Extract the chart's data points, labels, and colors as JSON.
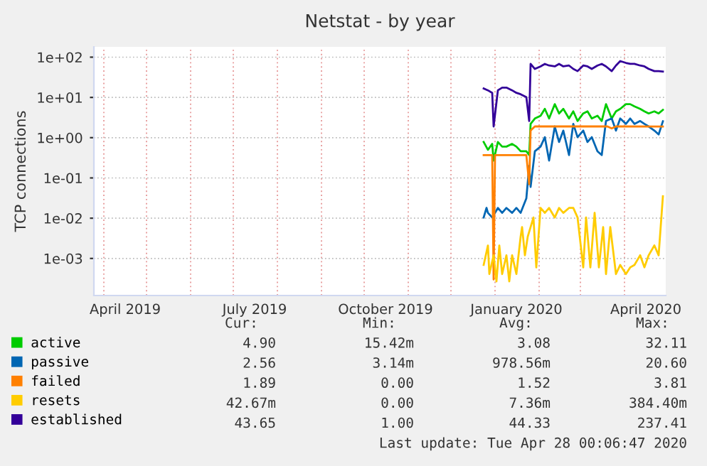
{
  "chart_data": {
    "type": "line",
    "title": "Netstat - by year",
    "ylabel": "TCP connections",
    "log": "y",
    "grid": true,
    "legend": "bottom left",
    "marker": "none",
    "line_style": "solid",
    "xlim": [
      "2019-03-25",
      "2020-04-30"
    ],
    "ylim": [
      0.00012,
      180
    ],
    "xticks": [
      {
        "value": "2019-04-01",
        "label": null
      },
      {
        "value": "2019-05-01",
        "label": null
      },
      {
        "value": "2019-06-01",
        "label": null
      },
      {
        "value": "2019-07-01",
        "label": null
      },
      {
        "value": "2019-08-01",
        "label": null
      },
      {
        "value": "2019-09-01",
        "label": null
      },
      {
        "value": "2019-10-01",
        "label": null
      },
      {
        "value": "2019-11-01",
        "label": null
      },
      {
        "value": "2019-12-01",
        "label": null
      },
      {
        "value": "2020-01-01",
        "label": null
      },
      {
        "value": "2020-02-01",
        "label": null
      },
      {
        "value": "2020-03-01",
        "label": null
      },
      {
        "value": "2020-04-01",
        "label": null
      },
      {
        "value": "2019-04-16",
        "label": "April 2019"
      },
      {
        "value": "2019-07-16",
        "label": "July 2019"
      },
      {
        "value": "2019-10-16",
        "label": "October 2019"
      },
      {
        "value": "2020-01-16",
        "label": "January 2020"
      },
      {
        "value": "2020-04-16",
        "label": "April 2020"
      }
    ],
    "yticks": [
      {
        "value": 0.001,
        "label": "1e-03"
      },
      {
        "value": 0.01,
        "label": "1e-02"
      },
      {
        "value": 0.1,
        "label": "1e-01"
      },
      {
        "value": 1,
        "label": "1e+00"
      },
      {
        "value": 10,
        "label": "1e+01"
      },
      {
        "value": 100,
        "label": "1e+02"
      }
    ],
    "series": [
      {
        "name": "active",
        "color": "#00cc00",
        "x": [
          "2019-12-24",
          "2019-12-27",
          "2019-12-30",
          "2019-12-31",
          "2020-01-03",
          "2020-01-06",
          "2020-01-09",
          "2020-01-13",
          "2020-01-16",
          "2020-01-19",
          "2020-01-23",
          "2020-01-25",
          "2020-01-26",
          "2020-01-29",
          "2020-02-02",
          "2020-02-05",
          "2020-02-08",
          "2020-02-12",
          "2020-02-15",
          "2020-02-18",
          "2020-02-22",
          "2020-02-25",
          "2020-02-28",
          "2020-03-03",
          "2020-03-06",
          "2020-03-09",
          "2020-03-13",
          "2020-03-16",
          "2020-03-19",
          "2020-03-23",
          "2020-03-26",
          "2020-03-29",
          "2020-04-02",
          "2020-04-05",
          "2020-04-08",
          "2020-04-12",
          "2020-04-15",
          "2020-04-18",
          "2020-04-22",
          "2020-04-25",
          "2020-04-28"
        ],
        "values": [
          0.78,
          0.5,
          0.7,
          0.27,
          0.78,
          0.6,
          0.6,
          0.7,
          0.6,
          0.46,
          0.46,
          0.37,
          2.2,
          3.0,
          3.5,
          5.2,
          3.0,
          6.8,
          4.0,
          5.2,
          3.0,
          4.5,
          2.6,
          4.0,
          4.5,
          3.0,
          3.5,
          2.6,
          6.8,
          3.0,
          4.5,
          5.2,
          6.8,
          6.8,
          6.0,
          5.2,
          4.5,
          4.0,
          4.5,
          4.0,
          4.9
        ]
      },
      {
        "name": "passive",
        "color": "#0066b3",
        "x": [
          "2019-12-24",
          "2019-12-26",
          "2019-12-27",
          "2019-12-30",
          "2020-01-03",
          "2020-01-06",
          "2020-01-09",
          "2020-01-13",
          "2020-01-16",
          "2020-01-19",
          "2020-01-23",
          "2020-01-25",
          "2020-01-26",
          "2020-01-29",
          "2020-02-02",
          "2020-02-05",
          "2020-02-08",
          "2020-02-12",
          "2020-02-15",
          "2020-02-18",
          "2020-02-22",
          "2020-02-25",
          "2020-02-28",
          "2020-03-03",
          "2020-03-06",
          "2020-03-09",
          "2020-03-13",
          "2020-03-16",
          "2020-03-19",
          "2020-03-23",
          "2020-03-26",
          "2020-03-29",
          "2020-04-02",
          "2020-04-05",
          "2020-04-08",
          "2020-04-12",
          "2020-04-15",
          "2020-04-18",
          "2020-04-22",
          "2020-04-25",
          "2020-04-28"
        ],
        "values": [
          0.0104,
          0.018,
          0.0136,
          0.0104,
          0.018,
          0.0136,
          0.018,
          0.0136,
          0.018,
          0.0136,
          0.031,
          0.2,
          0.06,
          0.46,
          0.6,
          1.03,
          0.27,
          1.9,
          0.78,
          1.5,
          0.37,
          2.2,
          1.03,
          1.5,
          0.78,
          1.03,
          0.46,
          0.37,
          2.6,
          3.0,
          1.5,
          3.0,
          2.2,
          3.0,
          2.2,
          2.6,
          2.2,
          1.9,
          1.5,
          1.2,
          2.56
        ]
      },
      {
        "name": "failed",
        "color": "#ff8000",
        "x": [
          "2019-12-24",
          "2019-12-30",
          "2019-12-31",
          "2020-01-01",
          "2020-01-23",
          "2020-01-25",
          "2020-01-26",
          "2020-01-29",
          "2020-03-20",
          "2020-03-23",
          "2020-03-26",
          "2020-04-28"
        ],
        "values": [
          0.37,
          0.37,
          0.0003,
          0.37,
          0.37,
          0.07,
          1.5,
          1.9,
          1.9,
          1.7,
          1.9,
          1.89
        ]
      },
      {
        "name": "resets",
        "color": "#ffcc00",
        "x": [
          "2019-12-24",
          "2019-12-27",
          "2019-12-28",
          "2019-12-31",
          "2020-01-02",
          "2020-01-04",
          "2020-01-06",
          "2020-01-09",
          "2020-01-11",
          "2020-01-13",
          "2020-01-16",
          "2020-01-19",
          "2020-01-20",
          "2020-01-22",
          "2020-01-24",
          "2020-01-26",
          "2020-01-28",
          "2020-01-30",
          "2020-02-02",
          "2020-02-05",
          "2020-02-08",
          "2020-02-12",
          "2020-02-15",
          "2020-02-18",
          "2020-02-22",
          "2020-02-25",
          "2020-02-28",
          "2020-03-03",
          "2020-03-05",
          "2020-03-08",
          "2020-03-11",
          "2020-03-14",
          "2020-03-17",
          "2020-03-19",
          "2020-03-22",
          "2020-03-26",
          "2020-03-29",
          "2020-04-02",
          "2020-04-05",
          "2020-04-08",
          "2020-04-12",
          "2020-04-15",
          "2020-04-18",
          "2020-04-22",
          "2020-04-25",
          "2020-04-28"
        ],
        "values": [
          0.00069,
          0.0021,
          0.00041,
          0.0012,
          0.00027,
          0.0021,
          0.00041,
          0.0012,
          0.00027,
          0.0012,
          0.00041,
          0.0035,
          0.006,
          0.0012,
          0.0035,
          0.006,
          0.0104,
          0.0006,
          0.018,
          0.0136,
          0.018,
          0.0104,
          0.018,
          0.0136,
          0.018,
          0.018,
          0.0104,
          0.0006,
          0.0104,
          0.0006,
          0.0136,
          0.0006,
          0.006,
          0.00041,
          0.006,
          0.00041,
          0.00069,
          0.00041,
          0.0006,
          0.00069,
          0.0012,
          0.0006,
          0.0012,
          0.0021,
          0.0012,
          0.035
        ]
      },
      {
        "name": "established",
        "color": "#330099",
        "x": [
          "2019-12-24",
          "2019-12-27",
          "2019-12-30",
          "2019-12-31",
          "2020-01-03",
          "2020-01-06",
          "2020-01-09",
          "2020-01-13",
          "2020-01-16",
          "2020-01-19",
          "2020-01-23",
          "2020-01-25",
          "2020-01-26",
          "2020-01-29",
          "2020-02-02",
          "2020-02-05",
          "2020-02-08",
          "2020-02-12",
          "2020-02-15",
          "2020-02-18",
          "2020-02-22",
          "2020-02-25",
          "2020-02-28",
          "2020-03-03",
          "2020-03-06",
          "2020-03-09",
          "2020-03-13",
          "2020-03-16",
          "2020-03-19",
          "2020-03-23",
          "2020-03-26",
          "2020-03-29",
          "2020-04-02",
          "2020-04-05",
          "2020-04-08",
          "2020-04-12",
          "2020-04-15",
          "2020-04-18",
          "2020-04-22",
          "2020-04-25",
          "2020-04-28"
        ],
        "values": [
          16.7,
          15,
          13,
          1.9,
          15,
          17.5,
          17.5,
          15,
          13,
          12,
          10.2,
          2.6,
          68,
          51,
          59,
          68,
          62,
          59,
          68,
          59,
          62,
          51,
          45,
          62,
          59,
          51,
          62,
          68,
          59,
          45,
          62,
          80,
          72,
          68,
          68,
          62,
          59,
          51,
          45,
          45,
          44
        ]
      }
    ],
    "annotations": [
      "Cur:",
      "Min:",
      "Avg:",
      "Max:",
      "4.90",
      "15.42m",
      "3.08",
      "32.11",
      "2.56",
      "3.14m",
      "978.56m",
      "20.60",
      "1.89",
      "0.00",
      "1.52",
      "3.81",
      "42.67m",
      "0.00",
      "7.36m",
      "384.40m",
      "43.65",
      "1.00",
      "44.33",
      "237.41",
      "Last update: Tue Apr 28 00:06:47 2020"
    ]
  }
}
